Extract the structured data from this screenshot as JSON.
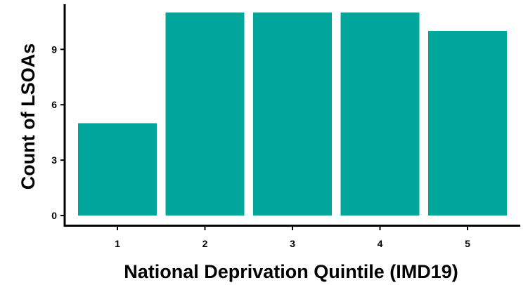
{
  "chart_data": {
    "type": "bar",
    "categories": [
      "1",
      "2",
      "3",
      "4",
      "5"
    ],
    "values": [
      5,
      11,
      11,
      11,
      10
    ],
    "title": "",
    "xlabel": "National Deprivation Quintile (IMD19)",
    "ylabel": "Count of LSOAs",
    "ylim": [
      0,
      11
    ],
    "yticks": [
      "0",
      "3",
      "6",
      "9"
    ],
    "bar_color": "#00A699",
    "grid": false,
    "legend": "none"
  }
}
